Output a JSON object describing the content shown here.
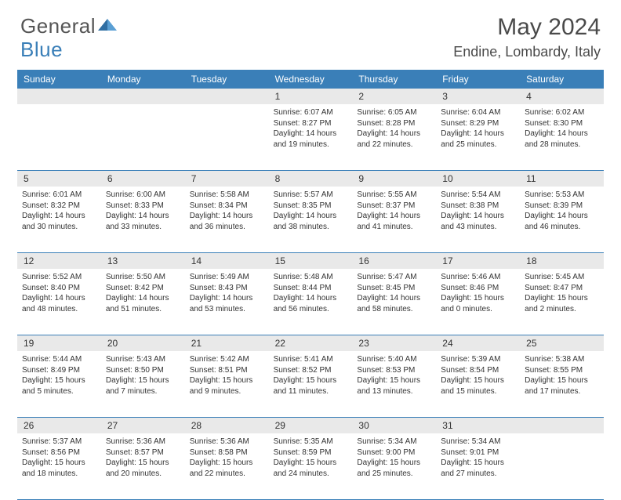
{
  "brand": {
    "part1": "General",
    "part2": "Blue"
  },
  "title": "May 2024",
  "location": "Endine, Lombardy, Italy",
  "colors": {
    "header_bg": "#3a7fb8",
    "daynum_bg": "#e9e9e9",
    "text": "#333333",
    "page_bg": "#ffffff"
  },
  "weekdays": [
    "Sunday",
    "Monday",
    "Tuesday",
    "Wednesday",
    "Thursday",
    "Friday",
    "Saturday"
  ],
  "weeks": [
    {
      "nums": [
        "",
        "",
        "",
        "1",
        "2",
        "3",
        "4"
      ],
      "cells": [
        null,
        null,
        null,
        {
          "sunrise": "Sunrise: 6:07 AM",
          "sunset": "Sunset: 8:27 PM",
          "day1": "Daylight: 14 hours",
          "day2": "and 19 minutes."
        },
        {
          "sunrise": "Sunrise: 6:05 AM",
          "sunset": "Sunset: 8:28 PM",
          "day1": "Daylight: 14 hours",
          "day2": "and 22 minutes."
        },
        {
          "sunrise": "Sunrise: 6:04 AM",
          "sunset": "Sunset: 8:29 PM",
          "day1": "Daylight: 14 hours",
          "day2": "and 25 minutes."
        },
        {
          "sunrise": "Sunrise: 6:02 AM",
          "sunset": "Sunset: 8:30 PM",
          "day1": "Daylight: 14 hours",
          "day2": "and 28 minutes."
        }
      ]
    },
    {
      "nums": [
        "5",
        "6",
        "7",
        "8",
        "9",
        "10",
        "11"
      ],
      "cells": [
        {
          "sunrise": "Sunrise: 6:01 AM",
          "sunset": "Sunset: 8:32 PM",
          "day1": "Daylight: 14 hours",
          "day2": "and 30 minutes."
        },
        {
          "sunrise": "Sunrise: 6:00 AM",
          "sunset": "Sunset: 8:33 PM",
          "day1": "Daylight: 14 hours",
          "day2": "and 33 minutes."
        },
        {
          "sunrise": "Sunrise: 5:58 AM",
          "sunset": "Sunset: 8:34 PM",
          "day1": "Daylight: 14 hours",
          "day2": "and 36 minutes."
        },
        {
          "sunrise": "Sunrise: 5:57 AM",
          "sunset": "Sunset: 8:35 PM",
          "day1": "Daylight: 14 hours",
          "day2": "and 38 minutes."
        },
        {
          "sunrise": "Sunrise: 5:55 AM",
          "sunset": "Sunset: 8:37 PM",
          "day1": "Daylight: 14 hours",
          "day2": "and 41 minutes."
        },
        {
          "sunrise": "Sunrise: 5:54 AM",
          "sunset": "Sunset: 8:38 PM",
          "day1": "Daylight: 14 hours",
          "day2": "and 43 minutes."
        },
        {
          "sunrise": "Sunrise: 5:53 AM",
          "sunset": "Sunset: 8:39 PM",
          "day1": "Daylight: 14 hours",
          "day2": "and 46 minutes."
        }
      ]
    },
    {
      "nums": [
        "12",
        "13",
        "14",
        "15",
        "16",
        "17",
        "18"
      ],
      "cells": [
        {
          "sunrise": "Sunrise: 5:52 AM",
          "sunset": "Sunset: 8:40 PM",
          "day1": "Daylight: 14 hours",
          "day2": "and 48 minutes."
        },
        {
          "sunrise": "Sunrise: 5:50 AM",
          "sunset": "Sunset: 8:42 PM",
          "day1": "Daylight: 14 hours",
          "day2": "and 51 minutes."
        },
        {
          "sunrise": "Sunrise: 5:49 AM",
          "sunset": "Sunset: 8:43 PM",
          "day1": "Daylight: 14 hours",
          "day2": "and 53 minutes."
        },
        {
          "sunrise": "Sunrise: 5:48 AM",
          "sunset": "Sunset: 8:44 PM",
          "day1": "Daylight: 14 hours",
          "day2": "and 56 minutes."
        },
        {
          "sunrise": "Sunrise: 5:47 AM",
          "sunset": "Sunset: 8:45 PM",
          "day1": "Daylight: 14 hours",
          "day2": "and 58 minutes."
        },
        {
          "sunrise": "Sunrise: 5:46 AM",
          "sunset": "Sunset: 8:46 PM",
          "day1": "Daylight: 15 hours",
          "day2": "and 0 minutes."
        },
        {
          "sunrise": "Sunrise: 5:45 AM",
          "sunset": "Sunset: 8:47 PM",
          "day1": "Daylight: 15 hours",
          "day2": "and 2 minutes."
        }
      ]
    },
    {
      "nums": [
        "19",
        "20",
        "21",
        "22",
        "23",
        "24",
        "25"
      ],
      "cells": [
        {
          "sunrise": "Sunrise: 5:44 AM",
          "sunset": "Sunset: 8:49 PM",
          "day1": "Daylight: 15 hours",
          "day2": "and 5 minutes."
        },
        {
          "sunrise": "Sunrise: 5:43 AM",
          "sunset": "Sunset: 8:50 PM",
          "day1": "Daylight: 15 hours",
          "day2": "and 7 minutes."
        },
        {
          "sunrise": "Sunrise: 5:42 AM",
          "sunset": "Sunset: 8:51 PM",
          "day1": "Daylight: 15 hours",
          "day2": "and 9 minutes."
        },
        {
          "sunrise": "Sunrise: 5:41 AM",
          "sunset": "Sunset: 8:52 PM",
          "day1": "Daylight: 15 hours",
          "day2": "and 11 minutes."
        },
        {
          "sunrise": "Sunrise: 5:40 AM",
          "sunset": "Sunset: 8:53 PM",
          "day1": "Daylight: 15 hours",
          "day2": "and 13 minutes."
        },
        {
          "sunrise": "Sunrise: 5:39 AM",
          "sunset": "Sunset: 8:54 PM",
          "day1": "Daylight: 15 hours",
          "day2": "and 15 minutes."
        },
        {
          "sunrise": "Sunrise: 5:38 AM",
          "sunset": "Sunset: 8:55 PM",
          "day1": "Daylight: 15 hours",
          "day2": "and 17 minutes."
        }
      ]
    },
    {
      "nums": [
        "26",
        "27",
        "28",
        "29",
        "30",
        "31",
        ""
      ],
      "cells": [
        {
          "sunrise": "Sunrise: 5:37 AM",
          "sunset": "Sunset: 8:56 PM",
          "day1": "Daylight: 15 hours",
          "day2": "and 18 minutes."
        },
        {
          "sunrise": "Sunrise: 5:36 AM",
          "sunset": "Sunset: 8:57 PM",
          "day1": "Daylight: 15 hours",
          "day2": "and 20 minutes."
        },
        {
          "sunrise": "Sunrise: 5:36 AM",
          "sunset": "Sunset: 8:58 PM",
          "day1": "Daylight: 15 hours",
          "day2": "and 22 minutes."
        },
        {
          "sunrise": "Sunrise: 5:35 AM",
          "sunset": "Sunset: 8:59 PM",
          "day1": "Daylight: 15 hours",
          "day2": "and 24 minutes."
        },
        {
          "sunrise": "Sunrise: 5:34 AM",
          "sunset": "Sunset: 9:00 PM",
          "day1": "Daylight: 15 hours",
          "day2": "and 25 minutes."
        },
        {
          "sunrise": "Sunrise: 5:34 AM",
          "sunset": "Sunset: 9:01 PM",
          "day1": "Daylight: 15 hours",
          "day2": "and 27 minutes."
        },
        null
      ]
    }
  ]
}
